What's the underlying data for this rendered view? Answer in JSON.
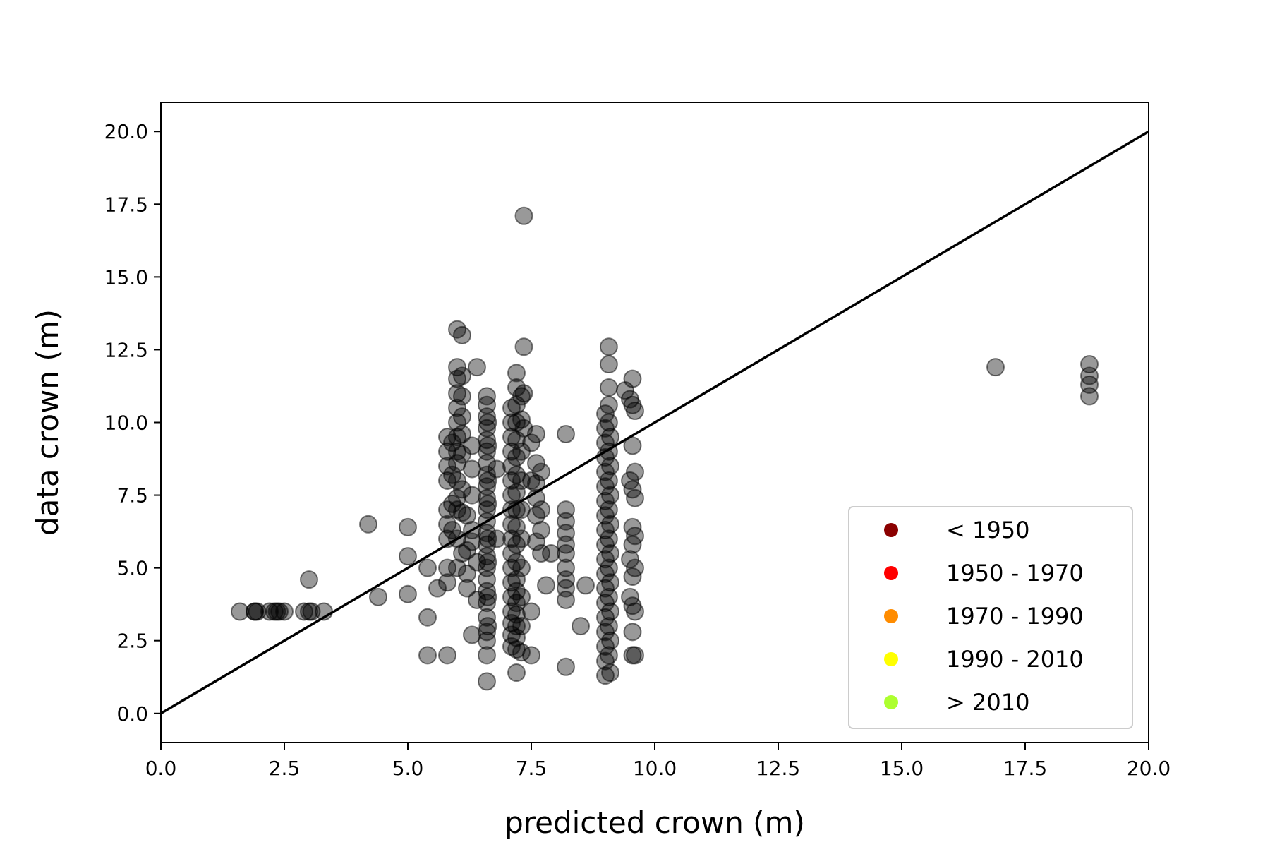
{
  "chart_data": {
    "type": "scatter",
    "xlabel": "predicted crown (m)",
    "ylabel": "data crown (m)",
    "xlim": [
      0,
      20
    ],
    "ylim": [
      -1.0,
      21.0
    ],
    "xticks": [
      "0.0",
      "2.5",
      "5.0",
      "7.5",
      "10.0",
      "12.5",
      "15.0",
      "17.5",
      "20.0"
    ],
    "yticks": [
      "0.0",
      "2.5",
      "5.0",
      "7.5",
      "10.0",
      "12.5",
      "15.0",
      "17.5",
      "20.0"
    ],
    "grid": false,
    "point_color": "#000000",
    "point_opacity": 0.4,
    "reference_line": {
      "x": [
        0,
        20
      ],
      "y": [
        0,
        20
      ],
      "color": "#000000"
    },
    "legend": {
      "position": "lower-right",
      "entries": [
        {
          "label": "< 1950",
          "color": "#8b0000"
        },
        {
          "label": "1950 - 1970",
          "color": "#ff0000"
        },
        {
          "label": "1970 - 1990",
          "color": "#ff8c00"
        },
        {
          "label": "1990 - 2010",
          "color": "#ffff00"
        },
        {
          "label": "> 2010",
          "color": "#adff2f"
        }
      ]
    },
    "points": [
      [
        1.6,
        3.5
      ],
      [
        1.9,
        3.5
      ],
      [
        1.9,
        3.5
      ],
      [
        1.95,
        3.5
      ],
      [
        2.2,
        3.5
      ],
      [
        2.3,
        3.5
      ],
      [
        2.35,
        3.5
      ],
      [
        2.4,
        3.5
      ],
      [
        2.5,
        3.5
      ],
      [
        2.9,
        3.5
      ],
      [
        3.0,
        3.5
      ],
      [
        3.05,
        3.5
      ],
      [
        3.3,
        3.5
      ],
      [
        3.0,
        4.6
      ],
      [
        4.2,
        6.5
      ],
      [
        4.4,
        4.0
      ],
      [
        5.0,
        6.4
      ],
      [
        5.0,
        5.4
      ],
      [
        5.0,
        4.1
      ],
      [
        5.4,
        5.0
      ],
      [
        5.4,
        3.3
      ],
      [
        5.4,
        2.0
      ],
      [
        5.6,
        4.3
      ],
      [
        5.8,
        2.0
      ],
      [
        5.8,
        4.5
      ],
      [
        5.8,
        5.0
      ],
      [
        5.8,
        6.0
      ],
      [
        5.8,
        6.5
      ],
      [
        5.8,
        7.0
      ],
      [
        5.8,
        8.0
      ],
      [
        5.8,
        8.5
      ],
      [
        5.8,
        9.0
      ],
      [
        5.8,
        9.5
      ],
      [
        5.9,
        6.3
      ],
      [
        5.9,
        7.2
      ],
      [
        5.9,
        8.2
      ],
      [
        5.9,
        9.3
      ],
      [
        6.0,
        11.9
      ],
      [
        6.0,
        11.5
      ],
      [
        6.0,
        11.0
      ],
      [
        6.0,
        10.5
      ],
      [
        6.0,
        10.0
      ],
      [
        6.0,
        9.5
      ],
      [
        6.0,
        9.0
      ],
      [
        6.0,
        8.6
      ],
      [
        6.0,
        8.0
      ],
      [
        6.0,
        7.4
      ],
      [
        6.0,
        7.0
      ],
      [
        6.0,
        6.0
      ],
      [
        6.0,
        5.0
      ],
      [
        6.0,
        13.2
      ],
      [
        6.1,
        13.0
      ],
      [
        6.1,
        11.6
      ],
      [
        6.1,
        10.9
      ],
      [
        6.1,
        10.2
      ],
      [
        6.1,
        9.6
      ],
      [
        6.1,
        8.9
      ],
      [
        6.1,
        7.7
      ],
      [
        6.1,
        6.9
      ],
      [
        6.1,
        5.5
      ],
      [
        6.2,
        5.6
      ],
      [
        6.2,
        4.8
      ],
      [
        6.2,
        4.3
      ],
      [
        6.2,
        6.8
      ],
      [
        6.3,
        2.7
      ],
      [
        6.3,
        5.9
      ],
      [
        6.3,
        8.4
      ],
      [
        6.3,
        9.2
      ],
      [
        6.3,
        7.5
      ],
      [
        6.3,
        6.3
      ],
      [
        6.4,
        11.9
      ],
      [
        6.4,
        5.2
      ],
      [
        6.4,
        3.9
      ],
      [
        6.6,
        1.1
      ],
      [
        6.6,
        2.0
      ],
      [
        6.6,
        2.5
      ],
      [
        6.6,
        2.8
      ],
      [
        6.6,
        3.3
      ],
      [
        6.6,
        3.8
      ],
      [
        6.6,
        4.2
      ],
      [
        6.6,
        4.6
      ],
      [
        6.6,
        5.0
      ],
      [
        6.6,
        5.4
      ],
      [
        6.6,
        5.8
      ],
      [
        6.6,
        6.2
      ],
      [
        6.6,
        6.6
      ],
      [
        6.6,
        7.0
      ],
      [
        6.6,
        7.4
      ],
      [
        6.6,
        7.8
      ],
      [
        6.6,
        8.2
      ],
      [
        6.6,
        8.6
      ],
      [
        6.6,
        9.0
      ],
      [
        6.6,
        9.4
      ],
      [
        6.6,
        9.8
      ],
      [
        6.6,
        10.2
      ],
      [
        6.6,
        10.6
      ],
      [
        6.6,
        10.9
      ],
      [
        6.62,
        3.0
      ],
      [
        6.62,
        4.0
      ],
      [
        6.62,
        5.2
      ],
      [
        6.62,
        6.0
      ],
      [
        6.62,
        7.2
      ],
      [
        6.62,
        8.0
      ],
      [
        6.62,
        9.2
      ],
      [
        6.62,
        10.0
      ],
      [
        6.8,
        8.4
      ],
      [
        6.8,
        6.0
      ],
      [
        7.1,
        2.3
      ],
      [
        7.1,
        2.7
      ],
      [
        7.1,
        3.1
      ],
      [
        7.1,
        3.5
      ],
      [
        7.1,
        4.0
      ],
      [
        7.1,
        4.5
      ],
      [
        7.1,
        5.0
      ],
      [
        7.1,
        5.5
      ],
      [
        7.1,
        6.0
      ],
      [
        7.1,
        6.5
      ],
      [
        7.1,
        7.0
      ],
      [
        7.1,
        7.5
      ],
      [
        7.1,
        8.0
      ],
      [
        7.1,
        8.5
      ],
      [
        7.1,
        9.0
      ],
      [
        7.1,
        9.5
      ],
      [
        7.1,
        10.0
      ],
      [
        7.1,
        10.5
      ],
      [
        7.2,
        1.4
      ],
      [
        7.2,
        2.2
      ],
      [
        7.2,
        2.6
      ],
      [
        7.2,
        3.0
      ],
      [
        7.2,
        3.4
      ],
      [
        7.2,
        3.8
      ],
      [
        7.2,
        4.2
      ],
      [
        7.2,
        4.6
      ],
      [
        7.2,
        5.2
      ],
      [
        7.2,
        5.8
      ],
      [
        7.2,
        6.4
      ],
      [
        7.2,
        7.0
      ],
      [
        7.2,
        7.6
      ],
      [
        7.2,
        8.2
      ],
      [
        7.2,
        8.8
      ],
      [
        7.2,
        9.4
      ],
      [
        7.2,
        10.0
      ],
      [
        7.2,
        10.6
      ],
      [
        7.2,
        11.2
      ],
      [
        7.2,
        11.7
      ],
      [
        7.3,
        2.1
      ],
      [
        7.3,
        3.0
      ],
      [
        7.3,
        4.0
      ],
      [
        7.3,
        5.0
      ],
      [
        7.3,
        6.0
      ],
      [
        7.3,
        7.0
      ],
      [
        7.3,
        8.0
      ],
      [
        7.3,
        9.0
      ],
      [
        7.3,
        10.1
      ],
      [
        7.3,
        10.9
      ],
      [
        7.35,
        17.1
      ],
      [
        7.35,
        12.6
      ],
      [
        7.35,
        11.0
      ],
      [
        7.35,
        9.8
      ],
      [
        7.5,
        2.0
      ],
      [
        7.5,
        3.5
      ],
      [
        7.5,
        9.3
      ],
      [
        7.5,
        8.0
      ],
      [
        7.6,
        5.9
      ],
      [
        7.6,
        6.8
      ],
      [
        7.6,
        7.4
      ],
      [
        7.6,
        7.9
      ],
      [
        7.6,
        8.6
      ],
      [
        7.6,
        9.6
      ],
      [
        7.7,
        5.5
      ],
      [
        7.7,
        6.3
      ],
      [
        7.7,
        7.0
      ],
      [
        7.7,
        8.3
      ],
      [
        7.8,
        4.4
      ],
      [
        7.9,
        5.5
      ],
      [
        8.2,
        1.6
      ],
      [
        8.2,
        3.9
      ],
      [
        8.2,
        4.3
      ],
      [
        8.2,
        4.6
      ],
      [
        8.2,
        5.0
      ],
      [
        8.2,
        5.5
      ],
      [
        8.2,
        5.8
      ],
      [
        8.2,
        6.2
      ],
      [
        8.2,
        6.6
      ],
      [
        8.2,
        7.0
      ],
      [
        8.2,
        9.6
      ],
      [
        8.5,
        3.0
      ],
      [
        8.6,
        4.4
      ],
      [
        9.0,
        1.3
      ],
      [
        9.0,
        1.8
      ],
      [
        9.0,
        2.3
      ],
      [
        9.0,
        2.8
      ],
      [
        9.0,
        3.3
      ],
      [
        9.0,
        3.8
      ],
      [
        9.0,
        4.3
      ],
      [
        9.0,
        4.8
      ],
      [
        9.0,
        5.3
      ],
      [
        9.0,
        5.8
      ],
      [
        9.0,
        6.3
      ],
      [
        9.0,
        6.8
      ],
      [
        9.0,
        7.3
      ],
      [
        9.0,
        7.8
      ],
      [
        9.0,
        8.3
      ],
      [
        9.0,
        8.8
      ],
      [
        9.0,
        9.3
      ],
      [
        9.0,
        9.8
      ],
      [
        9.0,
        10.3
      ],
      [
        9.07,
        12.6
      ],
      [
        9.07,
        12.0
      ],
      [
        9.07,
        11.2
      ],
      [
        9.07,
        10.6
      ],
      [
        9.07,
        2.0
      ],
      [
        9.07,
        3.0
      ],
      [
        9.07,
        4.0
      ],
      [
        9.07,
        5.0
      ],
      [
        9.07,
        6.0
      ],
      [
        9.07,
        7.0
      ],
      [
        9.07,
        8.0
      ],
      [
        9.07,
        9.0
      ],
      [
        9.07,
        10.0
      ],
      [
        9.1,
        1.4
      ],
      [
        9.1,
        2.5
      ],
      [
        9.1,
        3.5
      ],
      [
        9.1,
        4.5
      ],
      [
        9.1,
        5.5
      ],
      [
        9.1,
        6.5
      ],
      [
        9.1,
        7.5
      ],
      [
        9.1,
        8.5
      ],
      [
        9.1,
        9.5
      ],
      [
        9.4,
        11.1
      ],
      [
        9.5,
        10.8
      ],
      [
        9.5,
        8.0
      ],
      [
        9.5,
        5.3
      ],
      [
        9.5,
        4.0
      ],
      [
        9.55,
        11.5
      ],
      [
        9.55,
        10.6
      ],
      [
        9.55,
        9.2
      ],
      [
        9.55,
        7.7
      ],
      [
        9.55,
        6.4
      ],
      [
        9.55,
        5.8
      ],
      [
        9.55,
        4.7
      ],
      [
        9.55,
        3.7
      ],
      [
        9.55,
        2.8
      ],
      [
        9.55,
        2.0
      ],
      [
        9.6,
        10.4
      ],
      [
        9.6,
        8.3
      ],
      [
        9.6,
        7.4
      ],
      [
        9.6,
        6.1
      ],
      [
        9.6,
        5.0
      ],
      [
        9.6,
        3.5
      ],
      [
        9.6,
        2.0
      ],
      [
        16.9,
        11.9
      ],
      [
        18.8,
        12.0
      ],
      [
        18.8,
        11.6
      ],
      [
        18.8,
        11.3
      ],
      [
        18.8,
        10.9
      ]
    ]
  }
}
